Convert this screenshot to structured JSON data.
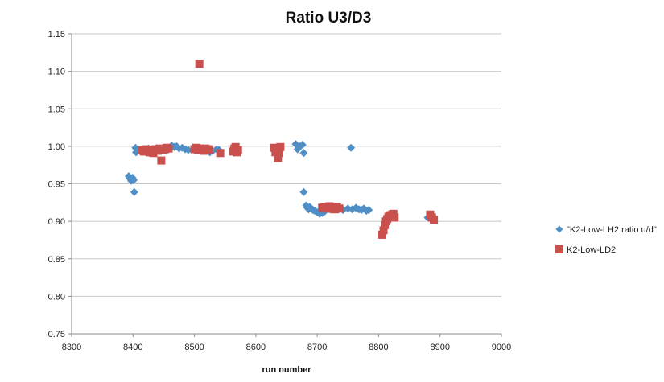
{
  "chart_data": {
    "type": "scatter",
    "title": "Ratio U3/D3",
    "xlabel": "run number",
    "ylabel": "",
    "xlim": [
      8300,
      9000
    ],
    "ylim": [
      0.75,
      1.15
    ],
    "xticks": [
      8300,
      8400,
      8500,
      8600,
      8700,
      8800,
      8900,
      9000
    ],
    "yticks": [
      0.75,
      0.8,
      0.85,
      0.9,
      0.95,
      1.0,
      1.05,
      1.1,
      1.15
    ],
    "xtick_labels": [
      "8300",
      "8400",
      "8500",
      "8600",
      "8700",
      "8800",
      "8900",
      "9000"
    ],
    "ytick_labels": [
      "0.75",
      "0.80",
      "0.85",
      "0.90",
      "0.95",
      "1.00",
      "1.05",
      "1.10",
      "1.15"
    ],
    "grid": "horizontal",
    "legend_position": "right",
    "series": [
      {
        "name": "\"K2-Low-LH2 ratio u/d\"",
        "marker": "diamond",
        "color": "#4f8fc6",
        "points": [
          [
            8393,
            0.96
          ],
          [
            8395,
            0.957
          ],
          [
            8397,
            0.954
          ],
          [
            8399,
            0.958
          ],
          [
            8401,
            0.955
          ],
          [
            8402,
            0.939
          ],
          [
            8404,
            0.998
          ],
          [
            8405,
            0.992
          ],
          [
            8408,
            0.996
          ],
          [
            8412,
            0.993
          ],
          [
            8418,
            0.995
          ],
          [
            8425,
            0.997
          ],
          [
            8432,
            0.994
          ],
          [
            8440,
            0.996
          ],
          [
            8450,
            0.995
          ],
          [
            8458,
            0.997
          ],
          [
            8463,
            1.001
          ],
          [
            8467,
            0.999
          ],
          [
            8471,
            1.0
          ],
          [
            8475,
            0.997
          ],
          [
            8480,
            0.998
          ],
          [
            8485,
            0.996
          ],
          [
            8490,
            0.995
          ],
          [
            8500,
            0.996
          ],
          [
            8510,
            0.997
          ],
          [
            8518,
            0.995
          ],
          [
            8525,
            0.992
          ],
          [
            8530,
            0.994
          ],
          [
            8536,
            0.996
          ],
          [
            8540,
            0.995
          ],
          [
            8565,
            0.996
          ],
          [
            8570,
            0.993
          ],
          [
            8665,
            1.003
          ],
          [
            8668,
            0.996
          ],
          [
            8672,
            1.0
          ],
          [
            8676,
            1.002
          ],
          [
            8678,
            0.991
          ],
          [
            8755,
            0.998
          ],
          [
            8678,
            0.939
          ],
          [
            8682,
            0.921
          ],
          [
            8684,
            0.918
          ],
          [
            8686,
            0.916
          ],
          [
            8688,
            0.919
          ],
          [
            8690,
            0.917
          ],
          [
            8693,
            0.915
          ],
          [
            8696,
            0.914
          ],
          [
            8700,
            0.912
          ],
          [
            8704,
            0.91
          ],
          [
            8708,
            0.911
          ],
          [
            8712,
            0.913
          ],
          [
            8720,
            0.916
          ],
          [
            8728,
            0.917
          ],
          [
            8735,
            0.916
          ],
          [
            8742,
            0.915
          ],
          [
            8750,
            0.917
          ],
          [
            8757,
            0.916
          ],
          [
            8763,
            0.918
          ],
          [
            8768,
            0.916
          ],
          [
            8772,
            0.915
          ],
          [
            8776,
            0.917
          ],
          [
            8780,
            0.914
          ],
          [
            8784,
            0.915
          ],
          [
            8880,
            0.905
          ],
          [
            8883,
            0.907
          ],
          [
            8886,
            0.904
          ],
          [
            8889,
            0.906
          ]
        ]
      },
      {
        "name": "K2-Low-LD2",
        "marker": "square",
        "color": "#c9504d",
        "points": [
          [
            8508,
            1.11
          ],
          [
            8415,
            0.995
          ],
          [
            8418,
            0.993
          ],
          [
            8421,
            0.996
          ],
          [
            8424,
            0.994
          ],
          [
            8427,
            0.992
          ],
          [
            8430,
            0.995
          ],
          [
            8433,
            0.991
          ],
          [
            8436,
            0.996
          ],
          [
            8440,
            0.994
          ],
          [
            8443,
            0.997
          ],
          [
            8446,
            0.981
          ],
          [
            8449,
            0.995
          ],
          [
            8452,
            0.996
          ],
          [
            8455,
            0.998
          ],
          [
            8458,
            0.997
          ],
          [
            8500,
            0.996
          ],
          [
            8503,
            0.998
          ],
          [
            8506,
            0.995
          ],
          [
            8509,
            0.997
          ],
          [
            8512,
            0.996
          ],
          [
            8515,
            0.994
          ],
          [
            8518,
            0.997
          ],
          [
            8521,
            0.995
          ],
          [
            8524,
            0.996
          ],
          [
            8542,
            0.991
          ],
          [
            8563,
            0.993
          ],
          [
            8565,
            0.997
          ],
          [
            8567,
            0.999
          ],
          [
            8569,
            0.992
          ],
          [
            8571,
            0.995
          ],
          [
            8630,
            0.998
          ],
          [
            8632,
            0.992
          ],
          [
            8634,
            0.996
          ],
          [
            8636,
            0.984
          ],
          [
            8638,
            0.991
          ],
          [
            8640,
            0.999
          ],
          [
            8708,
            0.918
          ],
          [
            8712,
            0.919
          ],
          [
            8716,
            0.917
          ],
          [
            8720,
            0.92
          ],
          [
            8724,
            0.918
          ],
          [
            8728,
            0.916
          ],
          [
            8732,
            0.919
          ],
          [
            8736,
            0.917
          ],
          [
            8806,
            0.882
          ],
          [
            8808,
            0.888
          ],
          [
            8810,
            0.895
          ],
          [
            8812,
            0.9
          ],
          [
            8814,
            0.903
          ],
          [
            8816,
            0.906
          ],
          [
            8818,
            0.908
          ],
          [
            8820,
            0.907
          ],
          [
            8822,
            0.909
          ],
          [
            8824,
            0.91
          ],
          [
            8826,
            0.905
          ],
          [
            8884,
            0.909
          ],
          [
            8887,
            0.905
          ],
          [
            8890,
            0.902
          ]
        ]
      }
    ]
  }
}
